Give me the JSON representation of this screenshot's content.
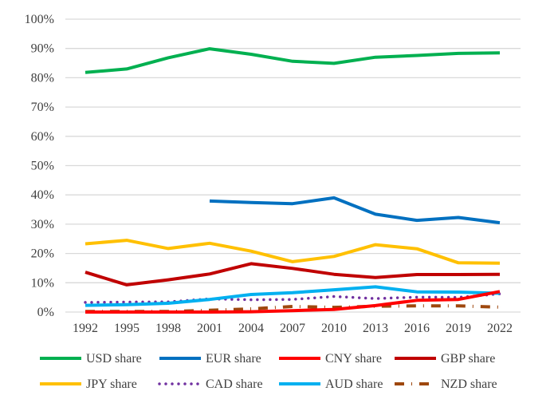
{
  "chart_data": {
    "type": "line",
    "title": "",
    "xlabel": "",
    "ylabel": "",
    "ylim": [
      0,
      100
    ],
    "y_ticks": [
      "0%",
      "10%",
      "20%",
      "30%",
      "40%",
      "50%",
      "60%",
      "70%",
      "80%",
      "90%",
      "100%"
    ],
    "x": [
      "1992",
      "1995",
      "1998",
      "2001",
      "2004",
      "2007",
      "2010",
      "2013",
      "2016",
      "2019",
      "2022"
    ],
    "grid": "horizontal",
    "legend_placement": "bottom",
    "series": [
      {
        "name": "USD share",
        "color": "#00B050",
        "style": "solid",
        "values": [
          81.8,
          83.0,
          86.8,
          89.9,
          88.0,
          85.6,
          84.9,
          87.0,
          87.6,
          88.3,
          88.5
        ]
      },
      {
        "name": "EUR share",
        "color": "#0070C0",
        "style": "solid",
        "values": [
          null,
          null,
          null,
          37.9,
          37.4,
          37.0,
          39.0,
          33.4,
          31.3,
          32.3,
          30.5
        ]
      },
      {
        "name": "CNY share",
        "color": "#FF0000",
        "style": "solid",
        "values": [
          0,
          0,
          0,
          0,
          0.1,
          0.5,
          0.9,
          2.2,
          4.0,
          4.3,
          7.0
        ]
      },
      {
        "name": "GBP share",
        "color": "#C00000",
        "style": "solid",
        "values": [
          13.6,
          9.3,
          11.0,
          13.0,
          16.5,
          14.9,
          12.9,
          11.8,
          12.8,
          12.8,
          12.9
        ]
      },
      {
        "name": "JPY share",
        "color": "#FFC000",
        "style": "solid",
        "values": [
          23.3,
          24.5,
          21.7,
          23.5,
          20.8,
          17.2,
          19.0,
          23.0,
          21.6,
          16.8,
          16.7
        ]
      },
      {
        "name": "CAD share",
        "color": "#7030A0",
        "style": "dotted",
        "values": [
          3.3,
          3.4,
          3.5,
          4.5,
          4.2,
          4.3,
          5.3,
          4.6,
          5.1,
          5.0,
          6.2
        ]
      },
      {
        "name": "AUD share",
        "color": "#00B0F0",
        "style": "solid",
        "values": [
          2.3,
          2.5,
          3.0,
          4.3,
          6.0,
          6.6,
          7.6,
          8.6,
          6.9,
          6.8,
          6.4
        ]
      },
      {
        "name": "NZD share",
        "color": "#9E480E",
        "style": "dashdot",
        "values": [
          0.2,
          0.2,
          0.2,
          0.6,
          1.1,
          1.9,
          1.6,
          2.0,
          2.1,
          2.1,
          1.7
        ]
      }
    ]
  }
}
